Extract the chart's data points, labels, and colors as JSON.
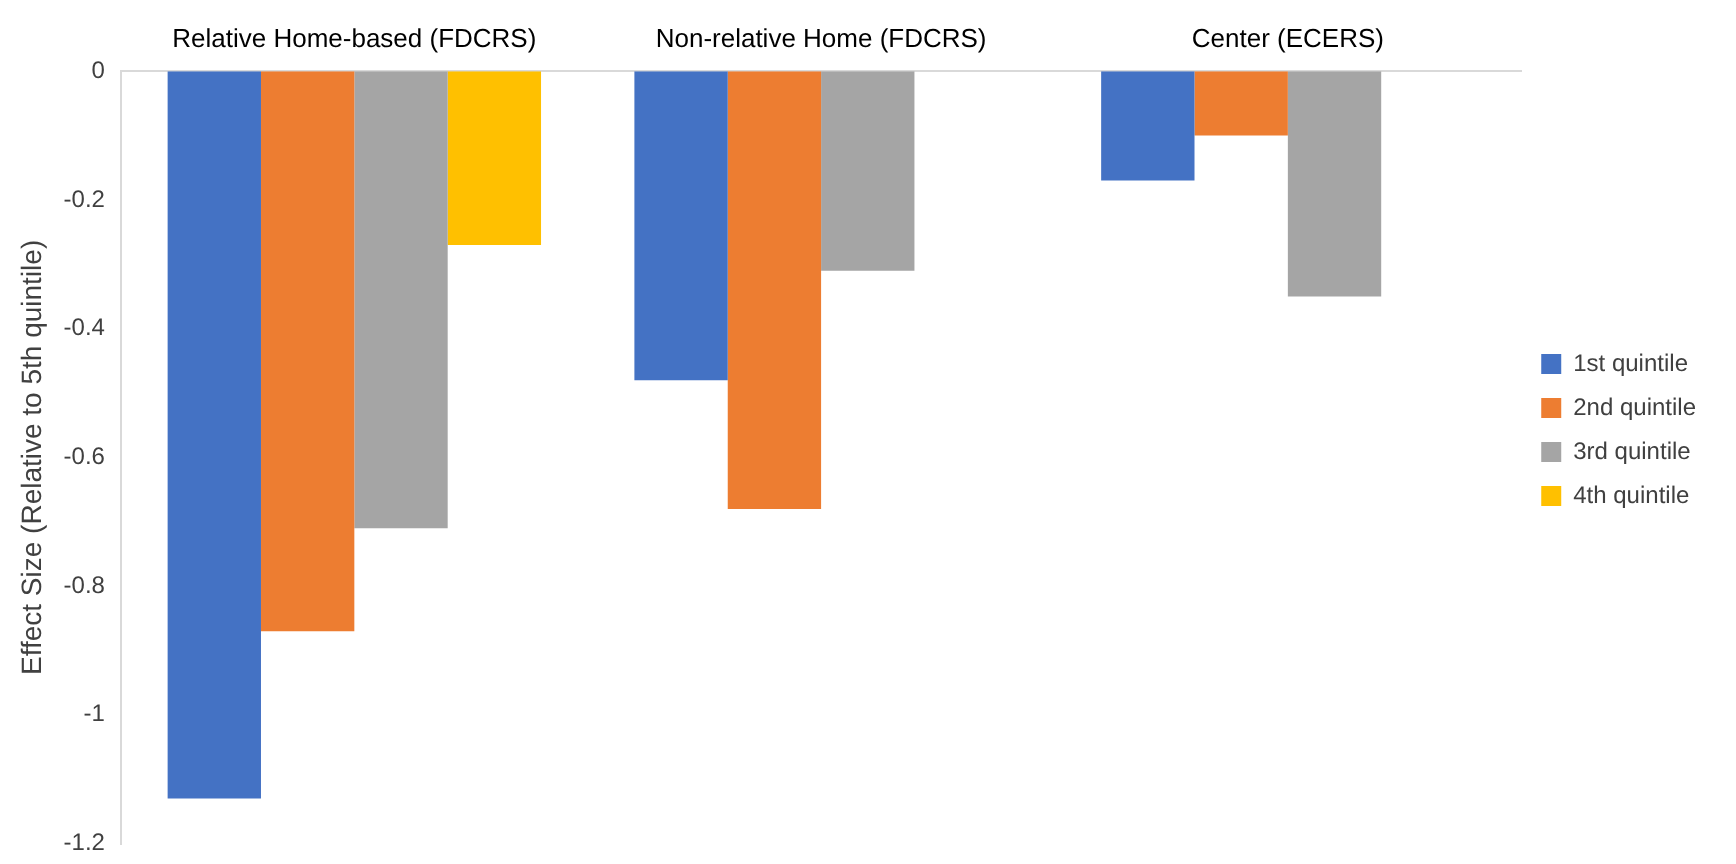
{
  "chart_data": {
    "type": "bar",
    "categories": [
      "Relative Home-based (FDCRS)",
      "Non-relative Home (FDCRS)",
      "Center (ECERS)"
    ],
    "series": [
      {
        "name": "1st quintile",
        "color": "#4472c4",
        "values": [
          -1.13,
          -0.48,
          -0.17
        ]
      },
      {
        "name": "2nd quintile",
        "color": "#ed7d31",
        "values": [
          -0.87,
          -0.68,
          -0.1
        ]
      },
      {
        "name": "3rd quintile",
        "color": "#a5a5a5",
        "values": [
          -0.71,
          -0.31,
          -0.35
        ]
      },
      {
        "name": "4th quintile",
        "color": "#ffc000",
        "values": [
          -0.27,
          null,
          null
        ]
      }
    ],
    "ylabel": "Effect Size (Relative to 5th quintile)",
    "ylim": [
      -1.2,
      0
    ],
    "yticks": [
      0,
      -0.2,
      -0.4,
      -0.6,
      -0.8,
      -1,
      -1.2
    ],
    "grid": false,
    "legend": "right"
  }
}
